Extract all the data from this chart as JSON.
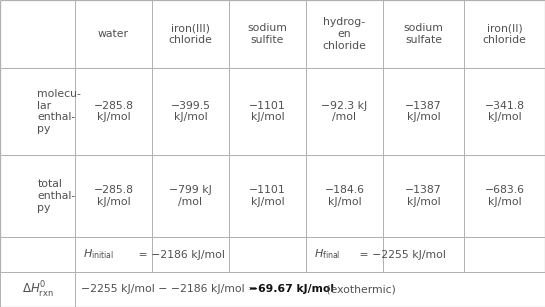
{
  "col_headers": [
    "",
    "water",
    "iron(III)\nchloride",
    "sodium\nsulfite",
    "hydrog-\nen\nchloride",
    "sodium\nsulfate",
    "iron(II)\nchloride"
  ],
  "row0_label": "molecu-\nlar\nenthal-\npy",
  "row0_values": [
    "−2 85.8\nkJ/mol",
    "−399.5\nkJ/mol",
    "−1101\nkJ/mol",
    "−92.3 kJ\n/mol",
    "−1387\nkJ/mol",
    "−341.8\nkJ/mol"
  ],
  "row1_label": "total\nenthal-\npy",
  "row1_values": [
    "−285.8\nkJ/mol",
    "−799 kJ\n/mol",
    "−1101\nkJ/mol",
    "−184.6\nkJ/mol",
    "−1387\nkJ/mol",
    "−683.6\nkJ/mol"
  ],
  "bg_color": "#ffffff",
  "text_color": "#505050",
  "line_color": "#b0b0b0"
}
